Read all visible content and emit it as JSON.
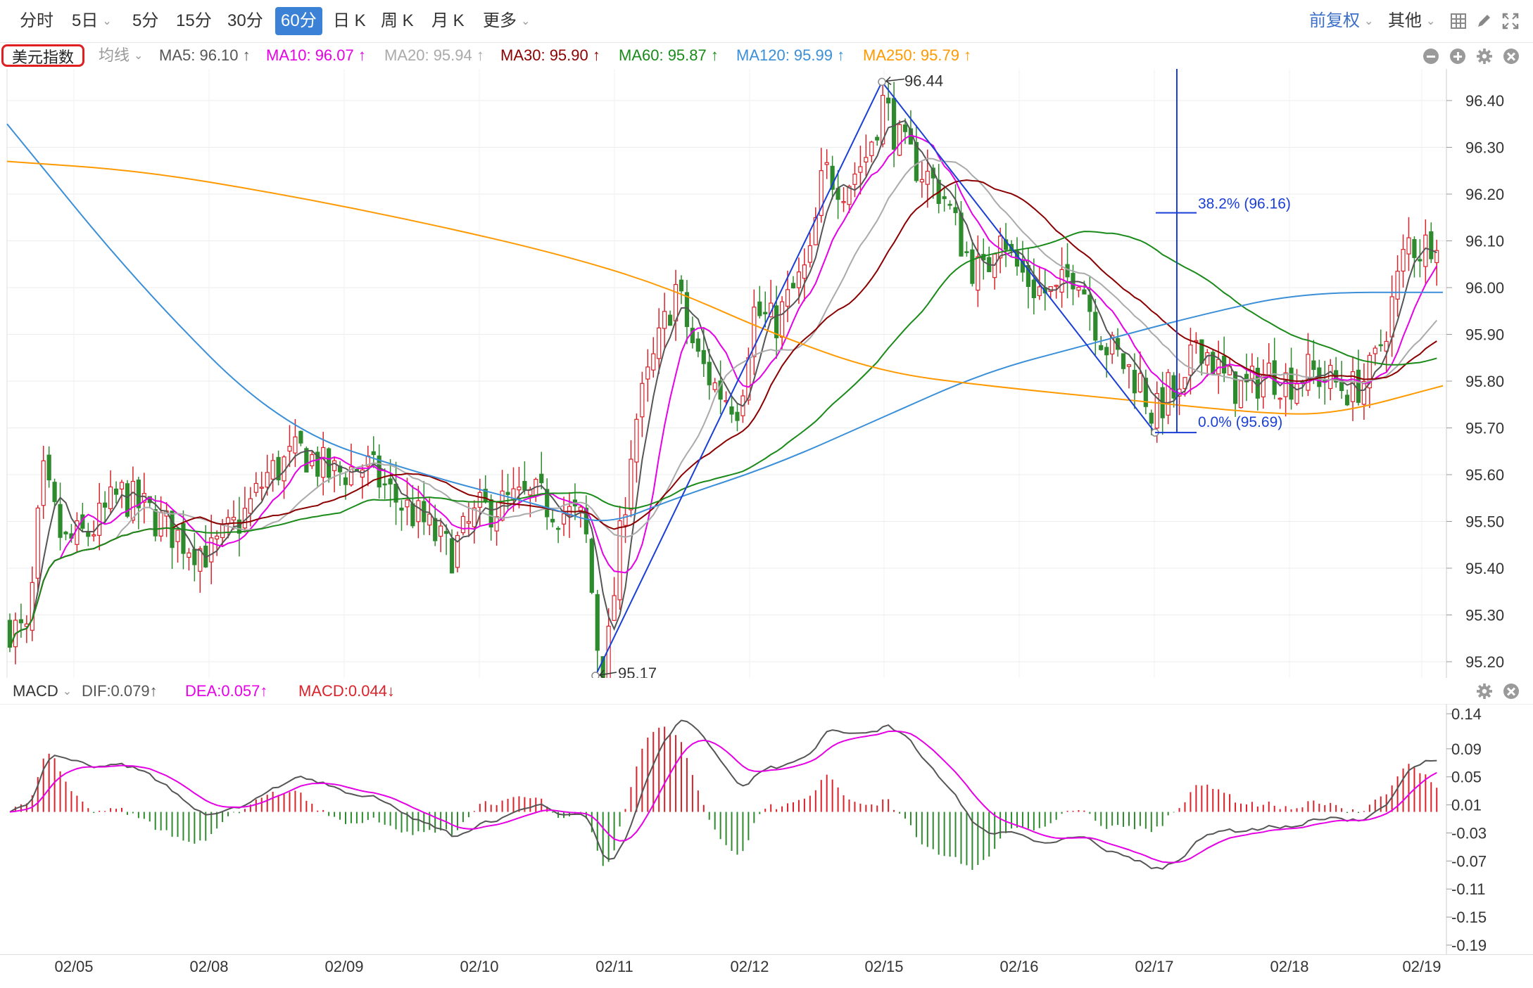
{
  "toolbar": {
    "tabs": [
      {
        "label": "分时",
        "active": false
      },
      {
        "label": "5日",
        "active": false,
        "has_caret": true
      },
      {
        "label": "5分",
        "active": false
      },
      {
        "label": "15分",
        "active": false
      },
      {
        "label": "30分",
        "active": false
      },
      {
        "label": "60分",
        "active": true
      },
      {
        "label": "日 K",
        "active": false
      },
      {
        "label": "周 K",
        "active": false
      },
      {
        "label": "月 K",
        "active": false
      },
      {
        "label": "更多",
        "active": false,
        "has_caret": true
      }
    ],
    "adjust_label": "前复权",
    "other_label": "其他",
    "icons": [
      "grid-icon",
      "pen-icon",
      "fullscreen-icon"
    ]
  },
  "legend": {
    "index_name": "美元指数",
    "ma_label": "均线",
    "items": [
      {
        "text": "MA5: 96.10 ↑",
        "color": "#555555"
      },
      {
        "text": "MA10: 96.07 ↑",
        "color": "#e600e6"
      },
      {
        "text": "MA20: 95.94 ↑",
        "color": "#aaaaaa"
      },
      {
        "text": "MA30: 95.90 ↑",
        "color": "#8b0000"
      },
      {
        "text": "MA60: 95.87 ↑",
        "color": "#1a8a1a"
      },
      {
        "text": "MA120: 95.99 ↑",
        "color": "#3a8fd8"
      },
      {
        "text": "MA250: 95.79 ↑",
        "color": "#ff9900"
      }
    ]
  },
  "macd_legend": {
    "name": "MACD",
    "dif": "DIF:0.079↑",
    "dea": "DEA:0.057↑",
    "macd": "MACD:0.044↓"
  },
  "chart_data": [
    {
      "type": "candlestick",
      "title": "美元指数",
      "y_ticks": [
        "96.40",
        "96.30",
        "96.20",
        "96.10",
        "96.00",
        "95.90",
        "95.80",
        "95.70",
        "95.60",
        "95.50",
        "95.40",
        "95.30",
        "95.20"
      ],
      "ylim": [
        95.17,
        96.44
      ],
      "x_ticks": [
        "02/05",
        "02/08",
        "02/09",
        "02/10",
        "02/11",
        "02/12",
        "02/15",
        "02/16",
        "02/17",
        "02/18",
        "02/19"
      ],
      "annotations": {
        "high": "96.44",
        "low": "95.17",
        "fib_382": "38.2% (96.16)",
        "fib_0": "0.0% (95.69)"
      },
      "colors": {
        "up": "#d9222a",
        "down": "#2d8a2d",
        "fib": "#1a3fd6"
      },
      "grid": true
    },
    {
      "type": "macd",
      "y_ticks": [
        "0.14",
        "0.09",
        "0.05",
        "0.01",
        "-0.03",
        "-0.07",
        "-0.11",
        "-0.15",
        "-0.19"
      ],
      "series": [
        {
          "name": "DIF",
          "color": "#555555"
        },
        {
          "name": "DEA",
          "color": "#e600e6"
        },
        {
          "name": "MACD",
          "color": "#d9222a"
        }
      ]
    }
  ]
}
